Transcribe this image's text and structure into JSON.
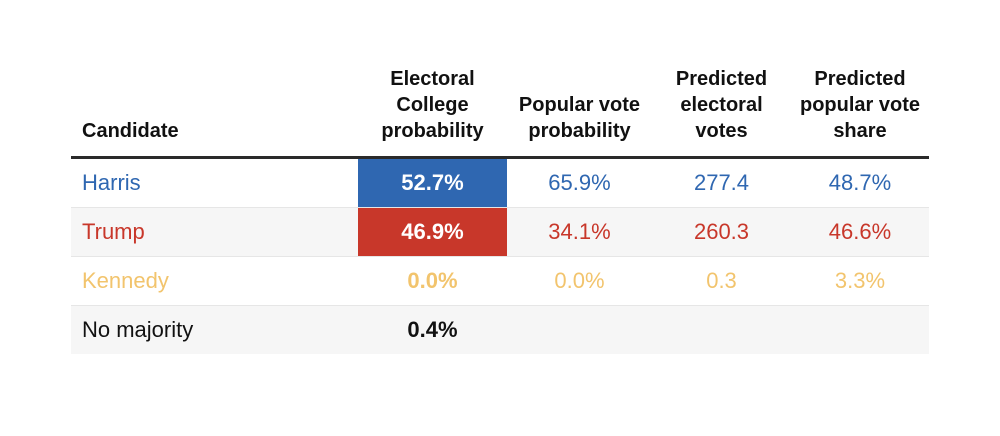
{
  "colors": {
    "harris": "#2f67b1",
    "trump": "#c8372a",
    "kennedy": "#f2c46d",
    "no_majority": "#111111"
  },
  "chart_data": {
    "type": "table",
    "columns": [
      "Candidate",
      "Electoral College probability",
      "Popular vote probability",
      "Predicted electoral votes",
      "Predicted popular vote share"
    ],
    "rows": [
      {
        "candidate": "Harris",
        "electoral_college_probability": "52.7%",
        "popular_vote_probability": "65.9%",
        "predicted_electoral_votes": "277.4",
        "predicted_popular_vote_share": "48.7%"
      },
      {
        "candidate": "Trump",
        "electoral_college_probability": "46.9%",
        "popular_vote_probability": "34.1%",
        "predicted_electoral_votes": "260.3",
        "predicted_popular_vote_share": "46.6%"
      },
      {
        "candidate": "Kennedy",
        "electoral_college_probability": "0.0%",
        "popular_vote_probability": "0.0%",
        "predicted_electoral_votes": "0.3",
        "predicted_popular_vote_share": "3.3%"
      },
      {
        "candidate": "No majority",
        "electoral_college_probability": "0.4%",
        "popular_vote_probability": "",
        "predicted_electoral_votes": "",
        "predicted_popular_vote_share": ""
      }
    ]
  }
}
